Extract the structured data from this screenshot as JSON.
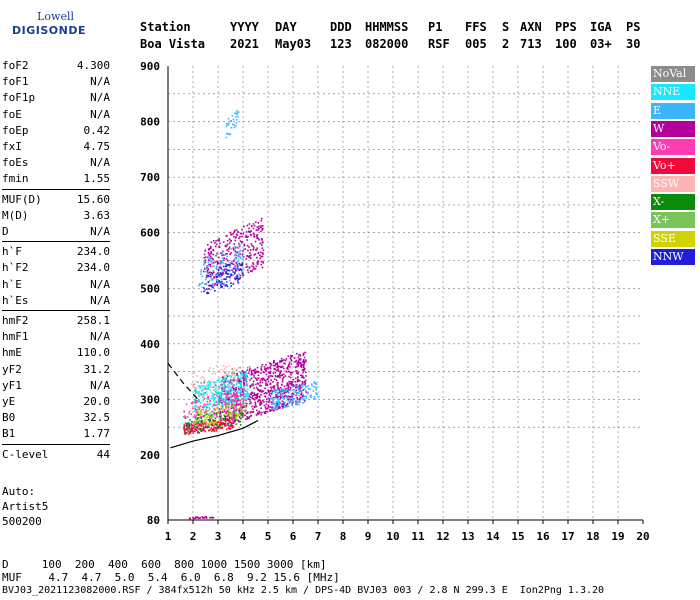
{
  "logo": {
    "line1": "Lowell",
    "line2": "DIGISONDE"
  },
  "header": {
    "labels": [
      "Station",
      "YYYY",
      "DAY",
      "DDD",
      "HHMMSS",
      "P1",
      "FFS",
      "S",
      "AXN",
      "PPS",
      "IGA",
      "PS"
    ],
    "values": [
      "Boa Vista",
      "2021",
      "May03",
      "123",
      "082000",
      "RSF",
      "005",
      "2",
      "713",
      "100",
      "03+",
      "30"
    ]
  },
  "params": [
    {
      "k": "foF2",
      "v": "4.300"
    },
    {
      "k": "foF1",
      "v": "N/A"
    },
    {
      "k": "foF1p",
      "v": "N/A"
    },
    {
      "k": "foE",
      "v": "N/A"
    },
    {
      "k": "foEp",
      "v": "0.42"
    },
    {
      "k": "fxI",
      "v": "4.75"
    },
    {
      "k": "foEs",
      "v": "N/A"
    },
    {
      "k": "fmin",
      "v": "1.55"
    },
    {
      "k": "MUF(D)",
      "v": "15.60"
    },
    {
      "k": "M(D)",
      "v": "3.63"
    },
    {
      "k": "D",
      "v": "N/A"
    },
    {
      "k": "h`F",
      "v": "234.0"
    },
    {
      "k": "h`F2",
      "v": "234.0"
    },
    {
      "k": "h`E",
      "v": "N/A"
    },
    {
      "k": "h`Es",
      "v": "N/A"
    },
    {
      "k": "hmF2",
      "v": "258.1"
    },
    {
      "k": "hmF1",
      "v": "N/A"
    },
    {
      "k": "hmE",
      "v": "110.0"
    },
    {
      "k": "yF2",
      "v": "31.2"
    },
    {
      "k": "yF1",
      "v": "N/A"
    },
    {
      "k": "yE",
      "v": "20.0"
    },
    {
      "k": "B0",
      "v": "32.5"
    },
    {
      "k": "B1",
      "v": "1.77"
    },
    {
      "k": "C-level",
      "v": "44"
    }
  ],
  "auto": {
    "line1": "Auto:",
    "line2": "Artist5",
    "line3": "500200"
  },
  "legend": [
    {
      "label": "NoVal",
      "color": "#8c8c8c"
    },
    {
      "label": "NNE",
      "color": "#19e6ff"
    },
    {
      "label": "E",
      "color": "#3cb4ff"
    },
    {
      "label": "W",
      "color": "#b4009b"
    },
    {
      "label": "Vo-",
      "color": "#ff3cb4"
    },
    {
      "label": "Vo+",
      "color": "#f00a3c"
    },
    {
      "label": "SSW",
      "color": "#ffb4b4"
    },
    {
      "label": "X-",
      "color": "#0a8c0a"
    },
    {
      "label": "X+",
      "color": "#78c35a"
    },
    {
      "label": "SSE",
      "color": "#d2d200"
    },
    {
      "label": "NNW",
      "color": "#1e1edc"
    }
  ],
  "footer": {
    "d_row": "D     100  200  400  600  800 1000 1500 3000 [km]",
    "muf_row": "MUF    4.7  4.7  5.0  5.4  6.0  6.8  9.2 15.6 [MHz]",
    "file_row": "BVJ03_2021123082000.RSF / 384fx512h 50 kHz 2.5 km / DPS-4D BVJ03 003 / 2.8 N 299.3 E  Ion2Png 1.3.20"
  },
  "chart_data": {
    "type": "scatter",
    "xlim": [
      1,
      20
    ],
    "ylim": [
      80,
      900
    ],
    "x_ticks": [
      1,
      2,
      3,
      4,
      5,
      6,
      7,
      8,
      9,
      10,
      11,
      12,
      13,
      14,
      15,
      16,
      17,
      18,
      19,
      20
    ],
    "y_ticks": [
      80,
      200,
      300,
      400,
      500,
      600,
      700,
      800,
      900
    ],
    "grid": true,
    "clusters": [
      {
        "name": "W",
        "color": "#b4009b",
        "fmin": 3.0,
        "fmax": 6.5,
        "hmin": 250,
        "hmax": 400,
        "n": 900
      },
      {
        "name": "W",
        "color": "#b4009b",
        "fmin": 2.4,
        "fmax": 4.8,
        "hmin": 490,
        "hmax": 640,
        "n": 350
      },
      {
        "name": "NNE",
        "color": "#19e6ff",
        "fmin": 2.0,
        "fmax": 4.2,
        "hmin": 275,
        "hmax": 360,
        "n": 300
      },
      {
        "name": "E",
        "color": "#3cb4ff",
        "fmin": 5.0,
        "fmax": 7.0,
        "hmin": 280,
        "hmax": 340,
        "n": 160
      },
      {
        "name": "E",
        "color": "#3cb4ff",
        "fmin": 2.2,
        "fmax": 4.0,
        "hmin": 490,
        "hmax": 590,
        "n": 120
      },
      {
        "name": "Vo+",
        "color": "#f00a3c",
        "fmin": 1.6,
        "fmax": 3.6,
        "hmin": 238,
        "hmax": 270,
        "n": 200
      },
      {
        "name": "Vo-",
        "color": "#ff3cb4",
        "fmin": 1.6,
        "fmax": 4.0,
        "hmin": 245,
        "hmax": 330,
        "n": 160
      },
      {
        "name": "X-",
        "color": "#0a8c0a",
        "fmin": 1.6,
        "fmax": 4.0,
        "hmin": 240,
        "hmax": 290,
        "n": 110
      },
      {
        "name": "X+",
        "color": "#78c35a",
        "fmin": 2.0,
        "fmax": 4.2,
        "hmin": 250,
        "hmax": 310,
        "n": 60
      },
      {
        "name": "SSE",
        "color": "#d2d200",
        "fmin": 2.0,
        "fmax": 4.0,
        "hmin": 250,
        "hmax": 300,
        "n": 50
      },
      {
        "name": "NNW",
        "color": "#1e1edc",
        "fmin": 2.5,
        "fmax": 4.0,
        "hmin": 490,
        "hmax": 560,
        "n": 80
      },
      {
        "name": "SSW",
        "color": "#ffb4b4",
        "fmin": 1.9,
        "fmax": 3.8,
        "hmin": 300,
        "hmax": 380,
        "n": 70
      },
      {
        "name": "NoVal",
        "color": "#8c8c8c",
        "fmin": 2.0,
        "fmax": 4.5,
        "hmin": 260,
        "hmax": 380,
        "n": 60
      },
      {
        "name": "E",
        "color": "#3cb4ff",
        "fmin": 3.3,
        "fmax": 3.8,
        "hmin": 770,
        "hmax": 830,
        "n": 30
      },
      {
        "name": "W",
        "color": "#b4009b",
        "fmin": 1.8,
        "fmax": 2.8,
        "hmin": 84,
        "hmax": 88,
        "n": 25
      }
    ],
    "profile_line": [
      [
        1.1,
        213
      ],
      [
        2.0,
        225
      ],
      [
        3.0,
        235
      ],
      [
        4.0,
        248
      ],
      [
        4.6,
        262
      ]
    ],
    "dashed_line": [
      [
        1.0,
        365
      ],
      [
        1.6,
        330
      ],
      [
        2.2,
        300
      ]
    ]
  }
}
